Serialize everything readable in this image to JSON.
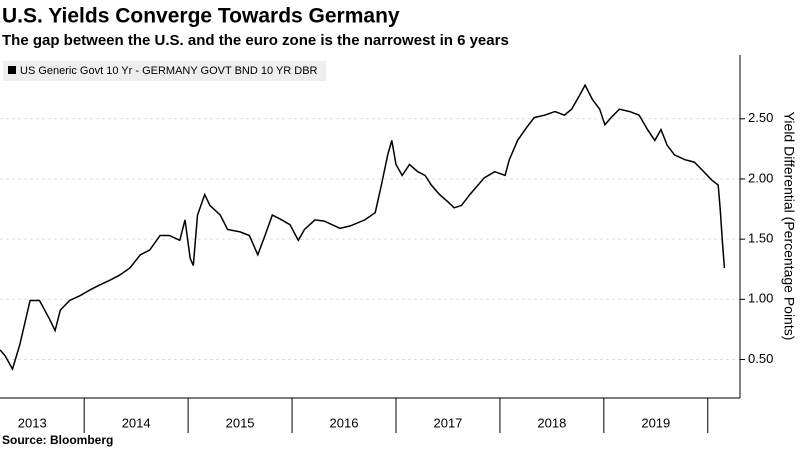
{
  "chart_data": {
    "type": "line",
    "title": "U.S. Yields Converge Towards Germany",
    "subtitle": "The gap between the U.S. and the euro zone is the narrowest in 6 years",
    "source": "Source: Bloomberg",
    "y_label": "Yield Differential (Percentage Points)",
    "x": [
      2013.19,
      2013.24,
      2013.31,
      2013.38,
      2013.48,
      2013.57,
      2013.67,
      2013.72,
      2013.77,
      2013.86,
      2013.96,
      2014.06,
      2014.15,
      2014.25,
      2014.34,
      2014.44,
      2014.54,
      2014.63,
      2014.73,
      2014.82,
      2014.92,
      2014.97,
      2015.02,
      2015.05,
      2015.09,
      2015.16,
      2015.21,
      2015.31,
      2015.38,
      2015.5,
      2015.59,
      2015.67,
      2015.74,
      2015.81,
      2015.88,
      2015.98,
      2016.06,
      2016.12,
      2016.22,
      2016.31,
      2016.46,
      2016.56,
      2016.7,
      2016.8,
      2016.86,
      2016.92,
      2016.96,
      2017.0,
      2017.06,
      2017.13,
      2017.21,
      2017.28,
      2017.34,
      2017.42,
      2017.5,
      2017.56,
      2017.63,
      2017.71,
      2017.79,
      2017.85,
      2017.95,
      2018.05,
      2018.09,
      2018.17,
      2018.25,
      2018.33,
      2018.43,
      2018.53,
      2018.62,
      2018.69,
      2018.77,
      2018.82,
      2018.89,
      2018.96,
      2019.01,
      2019.07,
      2019.15,
      2019.25,
      2019.34,
      2019.42,
      2019.49,
      2019.55,
      2019.61,
      2019.68,
      2019.78,
      2019.87,
      2019.95,
      2020.04,
      2020.1,
      2020.12,
      2020.14,
      2020.16
    ],
    "series": [
      {
        "name": "US Generic Govt 10 Yr - GERMANY GOVT BND 10 YR DBR",
        "color": "#000000",
        "values": [
          0.58,
          0.53,
          0.42,
          0.62,
          0.99,
          0.99,
          0.83,
          0.74,
          0.91,
          0.99,
          1.03,
          1.08,
          1.12,
          1.16,
          1.2,
          1.26,
          1.37,
          1.41,
          1.53,
          1.53,
          1.49,
          1.66,
          1.34,
          1.28,
          1.7,
          1.87,
          1.78,
          1.7,
          1.58,
          1.56,
          1.53,
          1.37,
          1.53,
          1.7,
          1.67,
          1.62,
          1.49,
          1.58,
          1.66,
          1.65,
          1.59,
          1.61,
          1.66,
          1.72,
          1.95,
          2.2,
          2.32,
          2.12,
          2.03,
          2.12,
          2.06,
          2.03,
          1.95,
          1.87,
          1.81,
          1.76,
          1.78,
          1.87,
          1.95,
          2.01,
          2.06,
          2.03,
          2.16,
          2.32,
          2.42,
          2.51,
          2.53,
          2.56,
          2.53,
          2.58,
          2.7,
          2.78,
          2.66,
          2.58,
          2.45,
          2.51,
          2.58,
          2.56,
          2.53,
          2.41,
          2.32,
          2.41,
          2.28,
          2.2,
          2.16,
          2.14,
          2.07,
          1.99,
          1.95,
          1.74,
          1.49,
          1.26
        ]
      }
    ],
    "xlim": [
      2013.19,
      2020.31
    ],
    "xticks": [
      {
        "value": 2013.5,
        "label": "2013"
      },
      {
        "value": 2014.5,
        "label": "2014"
      },
      {
        "value": 2015.5,
        "label": "2015"
      },
      {
        "value": 2016.5,
        "label": "2016"
      },
      {
        "value": 2017.5,
        "label": "2017"
      },
      {
        "value": 2018.5,
        "label": "2018"
      },
      {
        "value": 2019.5,
        "label": "2019"
      }
    ],
    "ylim": [
      0.18,
      3.03
    ],
    "yticks": [
      {
        "value": 0.5,
        "label": "0.50"
      },
      {
        "value": 1,
        "label": "1.00"
      },
      {
        "value": 1.5,
        "label": "1.50"
      },
      {
        "value": 2,
        "label": "2.00"
      },
      {
        "value": 2.5,
        "label": "2.50"
      }
    ],
    "grid": true
  }
}
